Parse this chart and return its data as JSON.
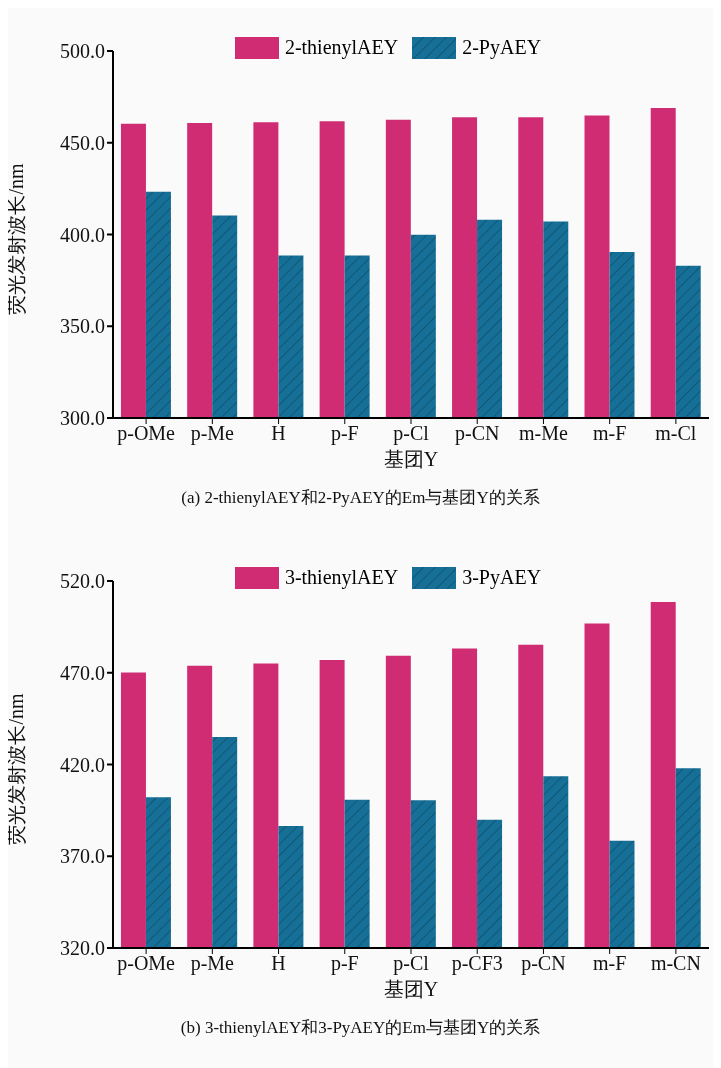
{
  "chart_data": [
    {
      "type": "bar",
      "xlabel": "基团Y",
      "ylabel": "荧光发射波长/nm",
      "annotations": [
        "(a) 2-thienylAEY和2-PyAEY的Em与基团Y的关系"
      ],
      "categories": [
        "p-OMe",
        "p-Me",
        "H",
        "p-F",
        "p-Cl",
        "p-CN",
        "m-Me",
        "m-F",
        "m-Cl"
      ],
      "series": [
        {
          "name": "2-thienylAEY",
          "color": "#d02c74",
          "values": [
            460.3,
            460.8,
            461.2,
            461.7,
            462.6,
            463.9,
            463.9,
            464.8,
            468.9
          ]
        },
        {
          "name": "2-PyAEY",
          "color": "#156f96",
          "values": [
            423.3,
            410.3,
            388.6,
            388.6,
            399.9,
            408.0,
            407.1,
            390.4,
            383.0
          ]
        }
      ],
      "ylim": [
        300,
        500
      ],
      "yticks": [
        {
          "value": 300,
          "label": "300.0"
        },
        {
          "value": 350,
          "label": "350.0"
        },
        {
          "value": 400,
          "label": "400.0"
        },
        {
          "value": 450,
          "label": "450.0"
        },
        {
          "value": 500,
          "label": "500.0"
        }
      ],
      "legend": "top",
      "grid": false
    },
    {
      "type": "bar",
      "xlabel": "基团Y",
      "ylabel": "荧光发射波长/nm",
      "annotations": [
        "(b) 3-thienylAEY和3-PyAEY的Em与基团Y的关系"
      ],
      "categories": [
        "p-OMe",
        "p-Me",
        "H",
        "p-F",
        "p-Cl",
        "p-CF3",
        "p-CN",
        "m-F",
        "m-CN"
      ],
      "series": [
        {
          "name": "3-thienylAEY",
          "color": "#d02c74",
          "values": [
            470.2,
            473.8,
            475.1,
            476.9,
            479.2,
            483.2,
            485.3,
            496.8,
            508.5
          ]
        },
        {
          "name": "3-PyAEY",
          "color": "#156f96",
          "values": [
            402.1,
            435.0,
            386.5,
            400.8,
            400.5,
            389.9,
            413.6,
            378.4,
            418.0
          ]
        }
      ],
      "ylim": [
        320,
        520
      ],
      "yticks": [
        {
          "value": 320,
          "label": "320.0"
        },
        {
          "value": 370,
          "label": "370.0"
        },
        {
          "value": 420,
          "label": "420.0"
        },
        {
          "value": 470,
          "label": "470.0"
        },
        {
          "value": 520,
          "label": "520.0"
        }
      ],
      "legend": "top",
      "grid": false
    }
  ]
}
